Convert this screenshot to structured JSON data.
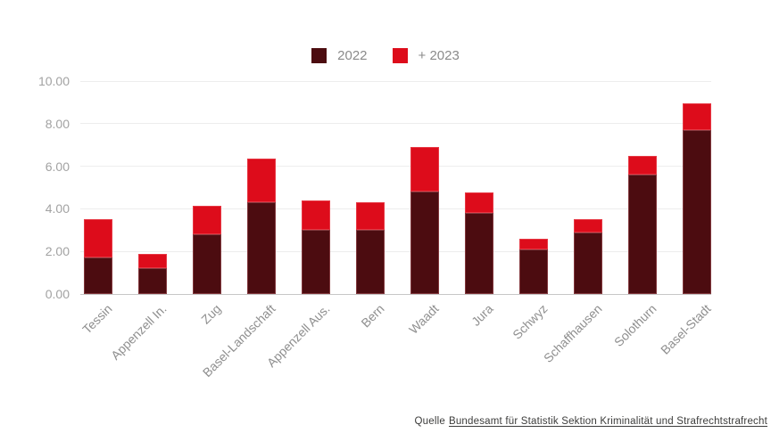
{
  "chart_data": {
    "type": "bar",
    "stacked": true,
    "title": "",
    "categories": [
      "Tessin",
      "Appenzell In.",
      "Zug",
      "Basel-Landschaft",
      "Appenzell Aus.",
      "Bern",
      "Waadt",
      "Jura",
      "Schwyz",
      "Schaffhausen",
      "Solothurn",
      "Basel-Stadt"
    ],
    "series": [
      {
        "name": "2022",
        "color": "#4c0c10",
        "values": [
          1.7,
          1.2,
          2.8,
          4.3,
          3.0,
          3.0,
          4.8,
          3.8,
          2.1,
          2.9,
          5.6,
          7.7
        ]
      },
      {
        "name": "+ 2023",
        "color": "#dd0c1b",
        "values": [
          1.8,
          0.7,
          1.35,
          2.05,
          1.4,
          1.3,
          2.1,
          0.95,
          0.5,
          0.6,
          0.9,
          1.25
        ]
      }
    ],
    "stack_totals": [
      3.5,
      1.9,
      4.15,
      6.35,
      4.4,
      4.3,
      6.9,
      4.75,
      2.6,
      3.5,
      6.5,
      8.95
    ],
    "y_tick_labels": [
      "10.00",
      "8.00",
      "6.00",
      "4.00",
      "2.00",
      "0.00"
    ],
    "y_tick_values": [
      10,
      8,
      6,
      4,
      2,
      0
    ],
    "ylim": [
      0,
      10
    ],
    "xlabel": "",
    "ylabel": "",
    "grid": true,
    "legend_position": "top-center"
  },
  "source": {
    "prefix": "Quelle",
    "link_text": "Bundesamt für Statistik Sektion Kriminalität und Strafrechtstrafrecht"
  }
}
